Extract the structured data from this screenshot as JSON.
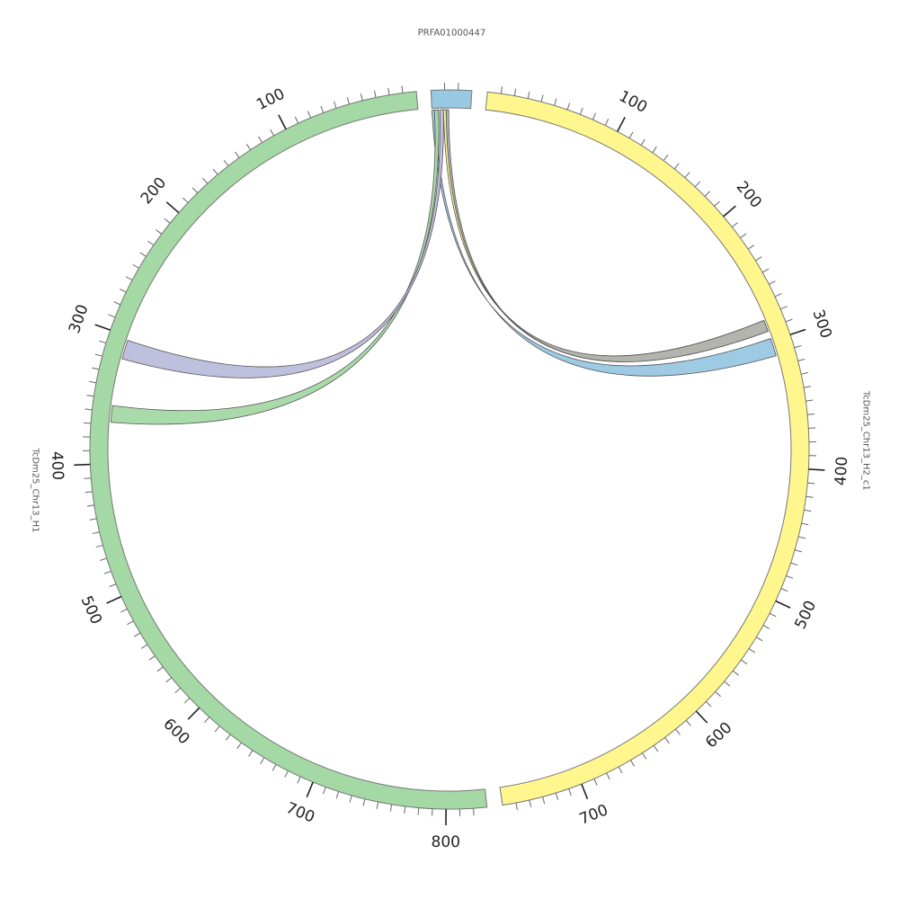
{
  "chart_data": {
    "type": "chord",
    "segments": [
      {
        "name": "PRFA01000447",
        "length": 30,
        "color": "#99c8e2",
        "ticks": []
      },
      {
        "name": "TcDm25_Chr13_H2_c1",
        "length": 760,
        "color": "#fff68d",
        "ticks": [
          100,
          200,
          300,
          400,
          500,
          600,
          700
        ]
      },
      {
        "name": "TcDm25_Chr13_H1",
        "length": 830,
        "color": "#a4d8a4",
        "ticks": [
          100,
          200,
          300,
          400,
          500,
          600,
          700,
          800
        ]
      }
    ],
    "links": [
      {
        "source": {
          "segment": "PRFA01000447",
          "start": 0,
          "end": 2
        },
        "target": {
          "segment": "TcDm25_Chr13_H2_c1",
          "start": 298,
          "end": 312
        },
        "color": "#99c8e2"
      },
      {
        "source": {
          "segment": "PRFA01000447",
          "start": 2,
          "end": 5
        },
        "target": {
          "segment": "TcDm25_Chr13_H1",
          "start": 355,
          "end": 368
        },
        "color": "#a4d8a4"
      },
      {
        "source": {
          "segment": "PRFA01000447",
          "start": 6,
          "end": 9
        },
        "target": {
          "segment": "TcDm25_Chr13_H1",
          "start": 303,
          "end": 318
        },
        "color": "#bcbcdc"
      },
      {
        "source": {
          "segment": "PRFA01000447",
          "start": 9,
          "end": 11
        },
        "target": {
          "segment": "TcDm25_Chr13_H2_c1",
          "start": 283,
          "end": 292
        },
        "color": "#fff68d"
      },
      {
        "source": {
          "segment": "PRFA01000447",
          "start": 11,
          "end": 13
        },
        "target": {
          "segment": "TcDm25_Chr13_H2_c1",
          "start": 283,
          "end": 292
        },
        "color": "#b0b0b0"
      }
    ]
  }
}
